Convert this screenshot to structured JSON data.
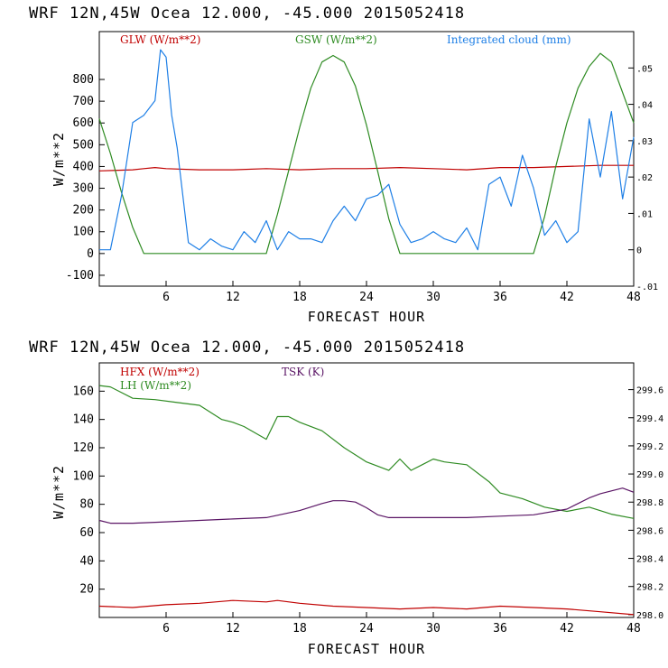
{
  "chart_data": [
    {
      "type": "line",
      "title": "WRF   12N,45W Ocea  12.000, -45.000  2015052418",
      "xlabel": "FORECAST HOUR",
      "ylabel": "W/m**2",
      "xlim": [
        0,
        48
      ],
      "ylim": [
        -150,
        1020
      ],
      "y2lim": [
        -0.01,
        0.06
      ],
      "xticks": [
        "6",
        "12",
        "18",
        "24",
        "30",
        "36",
        "42",
        "48"
      ],
      "yticks": [
        "-100",
        "0",
        "100",
        "200",
        "300",
        "400",
        "500",
        "600",
        "700",
        "800"
      ],
      "y2ticks": [
        "-.01",
        "0",
        ".01",
        ".02",
        ".03",
        ".04",
        ".05"
      ],
      "series": [
        {
          "name": "GLW (W/m**2)",
          "color": "#c00000",
          "axis": "left",
          "x": [
            0,
            3,
            4,
            5,
            6,
            9,
            12,
            15,
            18,
            21,
            24,
            27,
            30,
            33,
            36,
            39,
            42,
            45,
            48
          ],
          "y": [
            380,
            385,
            390,
            395,
            390,
            385,
            385,
            390,
            385,
            390,
            390,
            395,
            390,
            385,
            395,
            395,
            400,
            405,
            405
          ]
        },
        {
          "name": "GSW (W/m**2)",
          "color": "#2e8b22",
          "axis": "left",
          "x": [
            0,
            1,
            2,
            3,
            4,
            15,
            16,
            17,
            18,
            19,
            20,
            21,
            22,
            23,
            24,
            25,
            26,
            27,
            39,
            40,
            41,
            42,
            43,
            44,
            45,
            46,
            47,
            48
          ],
          "y": [
            620,
            460,
            280,
            120,
            0,
            0,
            180,
            380,
            580,
            760,
            880,
            910,
            880,
            770,
            590,
            380,
            160,
            0,
            0,
            170,
            400,
            600,
            760,
            860,
            920,
            880,
            740,
            600
          ]
        },
        {
          "name": "Integrated cloud (mm)",
          "color": "#1e7fe6",
          "axis": "right",
          "x": [
            0,
            1,
            2,
            3,
            4,
            5,
            5.5,
            6,
            6.5,
            7,
            8,
            9,
            10,
            11,
            12,
            13,
            14,
            15,
            16,
            17,
            18,
            19,
            20,
            21,
            22,
            23,
            24,
            25,
            26,
            27,
            28,
            29,
            30,
            31,
            32,
            33,
            34,
            35,
            36,
            37,
            38,
            39,
            40,
            41,
            42,
            43,
            44,
            45,
            46,
            47,
            48
          ],
          "y": [
            0,
            0,
            0.015,
            0.035,
            0.037,
            0.041,
            0.055,
            0.053,
            0.037,
            0.028,
            0.002,
            0.0,
            0.003,
            0.001,
            0.0,
            0.005,
            0.002,
            0.008,
            0.0,
            0.005,
            0.003,
            0.003,
            0.002,
            0.008,
            0.012,
            0.008,
            0.014,
            0.015,
            0.018,
            0.007,
            0.002,
            0.003,
            0.005,
            0.003,
            0.002,
            0.006,
            0.0,
            0.018,
            0.02,
            0.012,
            0.026,
            0.017,
            0.004,
            0.008,
            0.002,
            0.005,
            0.036,
            0.02,
            0.038,
            0.014,
            0.031
          ]
        }
      ]
    },
    {
      "type": "line",
      "title": "WRF   12N,45W Ocea  12.000, -45.000  2015052418",
      "xlabel": "FORECAST HOUR",
      "ylabel": "W/m**2",
      "xlim": [
        0,
        48
      ],
      "ylim": [
        0,
        180
      ],
      "y2lim": [
        297.98,
        299.79
      ],
      "xticks": [
        "6",
        "12",
        "18",
        "24",
        "30",
        "36",
        "42",
        "48"
      ],
      "yticks": [
        "20",
        "40",
        "60",
        "80",
        "100",
        "120",
        "140",
        "160"
      ],
      "y2ticks": [
        "298.0",
        "298.2",
        "298.4",
        "298.6",
        "298.8",
        "299.0",
        "299.2",
        "299.4",
        "299.6"
      ],
      "series": [
        {
          "name": "HFX (W/m**2)",
          "color": "#c00000",
          "axis": "left",
          "x": [
            0,
            3,
            6,
            9,
            12,
            15,
            16,
            18,
            21,
            24,
            27,
            30,
            33,
            36,
            39,
            42,
            45,
            48
          ],
          "y": [
            8,
            7,
            9,
            10,
            12,
            11,
            12,
            10,
            8,
            7,
            6,
            7,
            6,
            8,
            7,
            6,
            4,
            2
          ]
        },
        {
          "name": "LH (W/m**2)",
          "color": "#2e8b22",
          "axis": "left",
          "x": [
            0,
            1,
            3,
            5,
            7,
            9,
            11,
            12,
            13,
            15,
            16,
            17,
            18,
            20,
            22,
            24,
            26,
            27,
            28,
            29,
            30,
            31,
            33,
            35,
            36,
            38,
            40,
            42,
            44,
            46,
            48
          ],
          "y": [
            164,
            163,
            155,
            154,
            152,
            150,
            140,
            138,
            135,
            126,
            142,
            142,
            138,
            132,
            120,
            110,
            104,
            112,
            104,
            108,
            112,
            110,
            108,
            96,
            88,
            84,
            78,
            75,
            78,
            73,
            70
          ]
        },
        {
          "name": "TSK (K)",
          "color": "#5a1565",
          "axis": "right",
          "x": [
            0,
            1,
            3,
            6,
            9,
            12,
            15,
            18,
            20,
            21,
            22,
            23,
            24,
            25,
            26,
            27,
            30,
            33,
            36,
            39,
            42,
            43,
            44,
            45,
            46,
            47,
            48
          ],
          "y": [
            298.67,
            298.65,
            298.65,
            298.66,
            298.67,
            298.68,
            298.69,
            298.74,
            298.79,
            298.81,
            298.81,
            298.8,
            298.76,
            298.71,
            298.69,
            298.69,
            298.69,
            298.69,
            298.7,
            298.71,
            298.75,
            298.79,
            298.83,
            298.86,
            298.88,
            298.9,
            298.87
          ]
        }
      ]
    }
  ]
}
